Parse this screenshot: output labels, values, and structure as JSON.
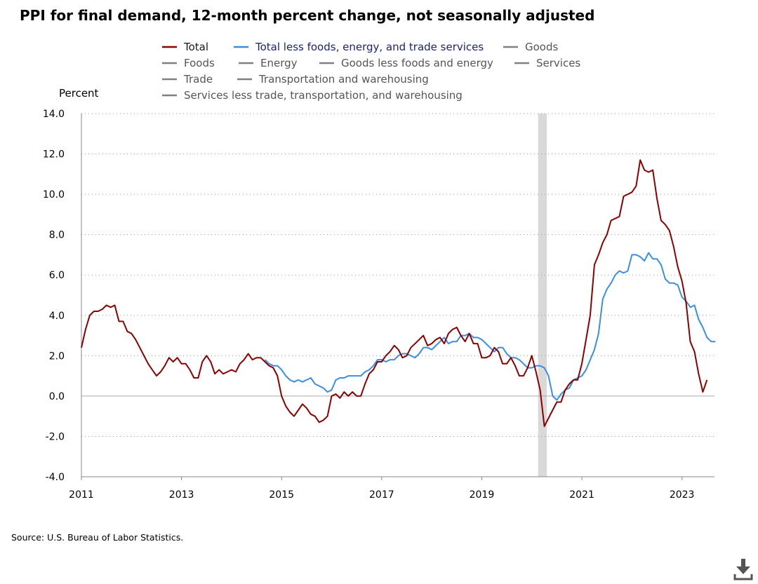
{
  "chart_data": {
    "type": "line",
    "title": "PPI for final demand, 12-month percent change, not seasonally adjusted",
    "ylabel": "Percent",
    "xlabel": "",
    "ylim": [
      -4.0,
      14.0
    ],
    "yticks": [
      "14.0",
      "12.0",
      "10.0",
      "8.0",
      "6.0",
      "4.0",
      "2.0",
      "0.0",
      "-2.0",
      "-4.0"
    ],
    "ytick_values": [
      14,
      12,
      10,
      8,
      6,
      4,
      2,
      0,
      -2,
      -4
    ],
    "xlim": [
      2011.0,
      2023.65
    ],
    "xticks": [
      "2011",
      "2013",
      "2015",
      "2017",
      "2019",
      "2021",
      "2023"
    ],
    "xtick_values": [
      2011,
      2013,
      2015,
      2017,
      2019,
      2021,
      2023
    ],
    "grid": "horizontal dotted",
    "recession": {
      "start": 2020.125,
      "end": 2020.3
    },
    "legend": [
      {
        "name": "Total",
        "color": "#8b0000",
        "active": true
      },
      {
        "name": "Total less foods, energy, and trade services",
        "color": "#3a8ee6",
        "active": true
      },
      {
        "name": "Goods",
        "color": "#808080",
        "active": false
      },
      {
        "name": "Foods",
        "color": "#808080",
        "active": false
      },
      {
        "name": "Energy",
        "color": "#808080",
        "active": false
      },
      {
        "name": "Goods less foods and energy",
        "color": "#808080",
        "active": false
      },
      {
        "name": "Services",
        "color": "#808080",
        "active": false
      },
      {
        "name": "Trade",
        "color": "#808080",
        "active": false
      },
      {
        "name": "Transportation and warehousing",
        "color": "#808080",
        "active": false
      },
      {
        "name": "Services less trade, transportation, and warehousing",
        "color": "#808080",
        "active": false
      }
    ],
    "series": [
      {
        "name": "Total",
        "color": "#8b0000",
        "start": 2011.0,
        "values": [
          2.4,
          3.3,
          4.0,
          4.2,
          4.2,
          4.3,
          4.5,
          4.4,
          4.5,
          3.7,
          3.7,
          3.2,
          3.1,
          2.8,
          2.4,
          2.0,
          1.6,
          1.3,
          1.0,
          1.2,
          1.5,
          1.9,
          1.7,
          1.9,
          1.6,
          1.6,
          1.3,
          0.9,
          0.9,
          1.7,
          2.0,
          1.7,
          1.1,
          1.3,
          1.1,
          1.2,
          1.3,
          1.2,
          1.6,
          1.8,
          2.1,
          1.8,
          1.9,
          1.9,
          1.7,
          1.5,
          1.4,
          1.0,
          0.0,
          -0.5,
          -0.8,
          -1.0,
          -0.7,
          -0.4,
          -0.6,
          -0.9,
          -1.0,
          -1.3,
          -1.2,
          -1.0,
          0.0,
          0.1,
          -0.1,
          0.2,
          0.0,
          0.2,
          0.0,
          0.0,
          0.6,
          1.1,
          1.3,
          1.7,
          1.7,
          2.0,
          2.2,
          2.5,
          2.3,
          1.9,
          2.0,
          2.4,
          2.6,
          2.8,
          3.0,
          2.5,
          2.6,
          2.8,
          2.9,
          2.6,
          3.1,
          3.3,
          3.4,
          3.0,
          2.7,
          3.1,
          2.6,
          2.6,
          1.9,
          1.9,
          2.0,
          2.4,
          2.2,
          1.6,
          1.6,
          1.9,
          1.5,
          1.0,
          1.0,
          1.4,
          2.0,
          1.2,
          0.3,
          -1.5,
          -1.1,
          -0.7,
          -0.3,
          -0.3,
          0.3,
          0.6,
          0.8,
          0.8,
          1.6,
          2.8,
          4.0,
          6.5,
          7.0,
          7.6,
          8.0,
          8.7,
          8.8,
          8.9,
          9.9,
          10.0,
          10.1,
          10.4,
          11.7,
          11.2,
          11.1,
          11.2,
          9.8,
          8.7,
          8.5,
          8.2,
          7.4,
          6.4,
          5.7,
          4.6,
          2.7,
          2.2,
          1.1,
          0.2,
          0.8
        ]
      },
      {
        "name": "Total less foods, energy, and trade services",
        "color": "#3a8ee6",
        "start": 2014.667,
        "values": [
          1.8,
          1.6,
          1.5,
          1.5,
          1.3,
          1.0,
          0.8,
          0.7,
          0.8,
          0.7,
          0.8,
          0.9,
          0.6,
          0.5,
          0.4,
          0.2,
          0.3,
          0.8,
          0.9,
          0.9,
          1.0,
          1.0,
          1.0,
          1.0,
          1.2,
          1.3,
          1.5,
          1.8,
          1.8,
          1.7,
          1.8,
          1.8,
          2.0,
          2.1,
          2.1,
          2.0,
          1.9,
          2.1,
          2.4,
          2.4,
          2.3,
          2.5,
          2.7,
          2.9,
          2.6,
          2.7,
          2.7,
          3.0,
          3.0,
          3.1,
          2.9,
          2.9,
          2.8,
          2.6,
          2.4,
          2.2,
          2.4,
          2.4,
          2.1,
          1.9,
          1.9,
          1.8,
          1.6,
          1.4,
          1.4,
          1.5,
          1.5,
          1.4,
          1.0,
          0.0,
          -0.2,
          0.1,
          0.3,
          0.4,
          0.8,
          0.9,
          1.0,
          1.3,
          1.8,
          2.3,
          3.1,
          4.8,
          5.3,
          5.6,
          6.0,
          6.2,
          6.1,
          6.2,
          7.0,
          7.0,
          6.9,
          6.7,
          7.1,
          6.8,
          6.8,
          6.5,
          5.8,
          5.6,
          5.6,
          5.5,
          4.9,
          4.7,
          4.4,
          4.5,
          3.8,
          3.4,
          2.9,
          2.7,
          2.7
        ]
      }
    ]
  },
  "source": "Source: U.S. Bureau of Labor Statistics."
}
